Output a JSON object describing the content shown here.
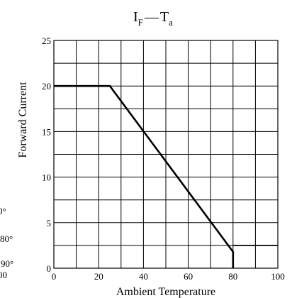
{
  "chart_data": {
    "type": "line",
    "title": {
      "main1": "I",
      "sub1": "F",
      "dash": "—",
      "main2": "T",
      "sub2": "a"
    },
    "xlabel": "Ambient Temperature",
    "ylabel": "Forward Current",
    "xlim": [
      0,
      100
    ],
    "ylim": [
      0,
      25
    ],
    "x_ticks": [
      0,
      20,
      40,
      60,
      80,
      100
    ],
    "y_ticks": [
      0,
      5,
      10,
      15,
      20,
      25
    ],
    "x_grid_step": 10,
    "y_grid_step": 2.5,
    "grid": true,
    "series": [
      {
        "x": [
          0,
          25,
          80,
          80
        ],
        "y": [
          20,
          20,
          1.8,
          0
        ]
      },
      {
        "x": [
          80,
          100
        ],
        "y": [
          2.5,
          2.5
        ]
      }
    ]
  },
  "partial_left_labels": [
    "0°",
    "80°",
    "90°",
    "00"
  ]
}
